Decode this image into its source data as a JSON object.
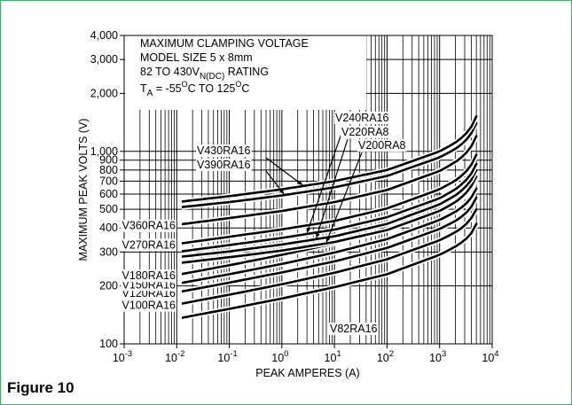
{
  "figure_label": "Figure 10",
  "chart_data": {
    "type": "line",
    "xscale": "log",
    "yscale": "log",
    "xlim": [
      0.001,
      10000
    ],
    "ylim": [
      100,
      4000
    ],
    "xlabel": "PEAK AMPERES (A)",
    "ylabel": "MAXIMUM PEAK VOLTS (V)",
    "grid": true,
    "x_ticks": [
      {
        "base": "10",
        "exp": "-3"
      },
      {
        "base": "10",
        "exp": "-2"
      },
      {
        "base": "10",
        "exp": "-1"
      },
      {
        "base": "10",
        "exp": "0"
      },
      {
        "base": "10",
        "exp": "1"
      },
      {
        "base": "10",
        "exp": "2"
      },
      {
        "base": "10",
        "exp": "3"
      },
      {
        "base": "10",
        "exp": "4"
      }
    ],
    "y_ticks": [
      {
        "value": 100,
        "label": "100"
      },
      {
        "value": 200,
        "label": "200"
      },
      {
        "value": 300,
        "label": "300"
      },
      {
        "value": 400,
        "label": "400"
      },
      {
        "value": 500,
        "label": "500"
      },
      {
        "value": 600,
        "label": "600"
      },
      {
        "value": 700,
        "label": "700"
      },
      {
        "value": 800,
        "label": "800"
      },
      {
        "value": 900,
        "label": "900"
      },
      {
        "value": 1000,
        "label": "1,000"
      },
      {
        "value": 2000,
        "label": "2,000"
      },
      {
        "value": 3000,
        "label": "3,000"
      },
      {
        "value": 4000,
        "label": "4,000"
      }
    ],
    "title_box": {
      "line1": "MAXIMUM CLAMPING VOLTAGE",
      "line2": "MODEL SIZE 5 x 8mm",
      "line3_pre": "82 TO 430V",
      "line3_sub": "N(DC)",
      "line3_post": " RATING",
      "line4_pre": "T",
      "line4_sub": "A",
      "line4_mid1": " = -55",
      "line4_sup1": "O",
      "line4_mid2": "C TO 125",
      "line4_sup2": "O",
      "line4_post": "C"
    },
    "series": [
      {
        "name": "V82RA16",
        "x": [
          0.01,
          0.1,
          1,
          10,
          100,
          1000,
          2000,
          3000,
          4000,
          5000
        ],
        "y": [
          135,
          152,
          172,
          197,
          230,
          290,
          320,
          345,
          375,
          420
        ]
      },
      {
        "name": "V100RA16",
        "x": [
          0.01,
          0.1,
          1,
          10,
          100,
          1000,
          2000,
          3000,
          4000,
          5000
        ],
        "y": [
          160,
          180,
          204,
          234,
          275,
          345,
          380,
          410,
          450,
          500
        ]
      },
      {
        "name": "V120RA16",
        "x": [
          0.01,
          0.1,
          1,
          10,
          100,
          1000,
          2000,
          3000,
          4000,
          5000
        ],
        "y": [
          185,
          208,
          235,
          268,
          315,
          395,
          435,
          470,
          515,
          575
        ]
      },
      {
        "name": "V150RA16",
        "x": [
          0.01,
          0.1,
          1,
          10,
          100,
          1000,
          2000,
          3000,
          4000,
          5000
        ],
        "y": [
          205,
          230,
          260,
          298,
          350,
          440,
          485,
          525,
          575,
          640
        ]
      },
      {
        "name": "V180RA16",
        "x": [
          0.01,
          0.1,
          1,
          10,
          100,
          1000,
          2000,
          3000,
          4000,
          5000
        ],
        "y": [
          228,
          256,
          290,
          332,
          390,
          490,
          540,
          585,
          640,
          710
        ]
      },
      {
        "name": "V200RA8",
        "x": [
          0.01,
          0.1,
          1,
          10,
          100,
          1000,
          2000,
          3000,
          4000,
          5000
        ],
        "y": [
          262,
          282,
          305,
          338,
          390,
          490,
          545,
          595,
          660,
          740
        ]
      },
      {
        "name": "V220RA8",
        "x": [
          0.01,
          0.1,
          1,
          10,
          100,
          1000,
          2000,
          3000,
          4000,
          5000
        ],
        "y": [
          282,
          302,
          328,
          362,
          420,
          530,
          590,
          645,
          710,
          800
        ]
      },
      {
        "name": "V240RA16",
        "x": [
          0.01,
          0.1,
          1,
          10,
          100,
          1000,
          2000,
          3000,
          4000,
          5000
        ],
        "y": [
          300,
          326,
          355,
          392,
          455,
          570,
          635,
          695,
          765,
          860
        ]
      },
      {
        "name": "V270RA16",
        "x": [
          0.01,
          0.1,
          1,
          10,
          100,
          1000,
          2000,
          3000,
          4000,
          5000
        ],
        "y": [
          330,
          360,
          393,
          435,
          505,
          635,
          705,
          770,
          850,
          960
        ]
      },
      {
        "name": "V360RA16",
        "x": [
          0.01,
          0.1,
          1,
          10,
          100,
          1000,
          2000,
          3000,
          4000,
          5000
        ],
        "y": [
          415,
          450,
          490,
          545,
          630,
          790,
          880,
          960,
          1060,
          1200
        ]
      },
      {
        "name": "V390RA16",
        "x": [
          0.01,
          0.1,
          1,
          10,
          100,
          1000,
          2000,
          3000,
          4000,
          5000
        ],
        "y": [
          510,
          545,
          590,
          650,
          745,
          930,
          1030,
          1120,
          1240,
          1400
        ]
      },
      {
        "name": "V430RA16",
        "x": [
          0.01,
          0.1,
          1,
          10,
          100,
          1000,
          2000,
          3000,
          4000,
          5000
        ],
        "y": [
          545,
          585,
          635,
          700,
          800,
          1000,
          1110,
          1210,
          1340,
          1520
        ]
      }
    ]
  }
}
